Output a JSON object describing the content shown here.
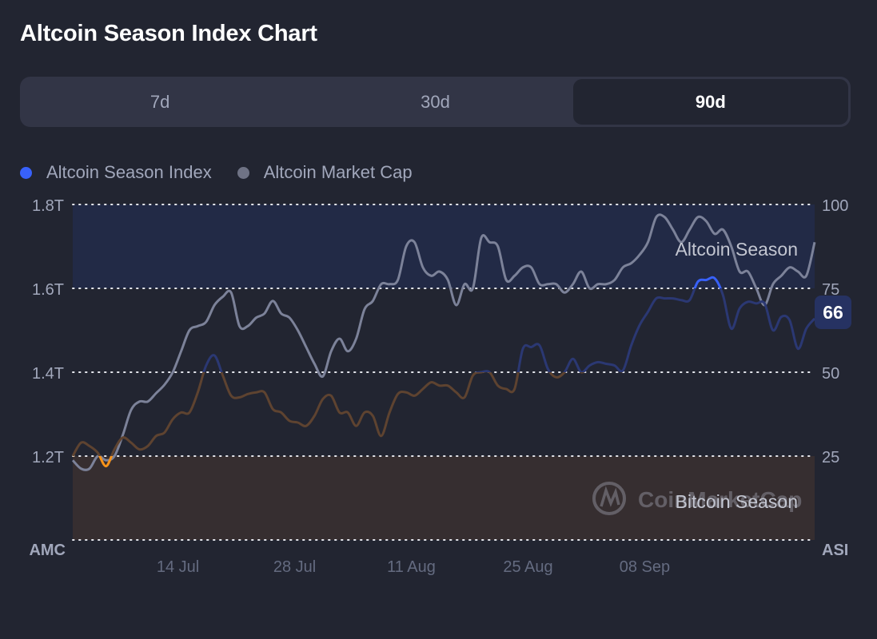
{
  "title": "Altcoin Season Index Chart",
  "tabs": [
    {
      "label": "7d",
      "active": false
    },
    {
      "label": "30d",
      "active": false
    },
    {
      "label": "90d",
      "active": true
    }
  ],
  "legend": [
    {
      "label": "Altcoin Season Index",
      "color": "#3861fb"
    },
    {
      "label": "Altcoin Market Cap",
      "color": "#6f7385"
    }
  ],
  "current_value_badge": "66",
  "watermark": "CoinMarketCap",
  "colors": {
    "background": "#222531",
    "altcoin_season_zone": "#222a46",
    "bitcoin_season_zone": "#362e30",
    "asi_bright_blue": "#3861fb",
    "asi_dim_blue": "#2b3873",
    "asi_dim_orange": "#5e4330",
    "asi_bright_orange": "#f7931a",
    "market_cap_line": "#7c8299"
  },
  "chart_data": {
    "type": "line",
    "title": "",
    "left_axis_label": "AMC",
    "right_axis_label": "ASI",
    "left_ticks": [
      "1.8T",
      "1.6T",
      "1.4T",
      "1.2T"
    ],
    "left_tick_values": [
      1.8,
      1.6,
      1.4,
      1.2
    ],
    "left_ylim": [
      1.0,
      1.8
    ],
    "right_ticks": [
      "100",
      "75",
      "50",
      "25"
    ],
    "right_tick_values": [
      100,
      75,
      50,
      25
    ],
    "right_ylim": [
      0,
      100
    ],
    "x_ticks": [
      "14 Jul",
      "28 Jul",
      "11 Aug",
      "25 Aug",
      "08 Sep"
    ],
    "x_start": "01 Jul",
    "x_end": "28 Sep",
    "zones": [
      {
        "label": "Altcoin Season",
        "from": 75,
        "to": 100
      },
      {
        "label": "Bitcoin Season",
        "from": 0,
        "to": 25
      }
    ],
    "grid": true,
    "legend_position": "top-left",
    "series": [
      {
        "name": "Altcoin Season Index",
        "axis": "right",
        "values": [
          25,
          29,
          28,
          26,
          22,
          27,
          30.5,
          29,
          27,
          28,
          31,
          32,
          36,
          38,
          38,
          44,
          52,
          55,
          49,
          43,
          42.5,
          43.5,
          44,
          44,
          39,
          38,
          35.5,
          35,
          34,
          37,
          42,
          43,
          38,
          38,
          34,
          38,
          37,
          31,
          38,
          43.5,
          44,
          43,
          45,
          47,
          46,
          46,
          44,
          42.5,
          49,
          50,
          50,
          46,
          45,
          45,
          57,
          57.5,
          58,
          51,
          48.5,
          50,
          54,
          50,
          52,
          53,
          52.5,
          52,
          50.5,
          58,
          64,
          68,
          72,
          72,
          72,
          71.5,
          71.5,
          77,
          77.5,
          78,
          73,
          63,
          69,
          71,
          70.5,
          70.5,
          62.5,
          66.5,
          65.5,
          57,
          63,
          66
        ]
      },
      {
        "name": "Altcoin Market Cap",
        "axis": "left",
        "values": [
          1.19,
          1.17,
          1.17,
          1.2,
          1.19,
          1.2,
          1.25,
          1.31,
          1.33,
          1.33,
          1.35,
          1.37,
          1.4,
          1.45,
          1.5,
          1.51,
          1.52,
          1.56,
          1.58,
          1.59,
          1.51,
          1.51,
          1.53,
          1.54,
          1.57,
          1.54,
          1.53,
          1.5,
          1.46,
          1.42,
          1.39,
          1.45,
          1.48,
          1.45,
          1.48,
          1.55,
          1.57,
          1.61,
          1.61,
          1.62,
          1.7,
          1.71,
          1.65,
          1.63,
          1.64,
          1.62,
          1.56,
          1.61,
          1.6,
          1.72,
          1.71,
          1.7,
          1.62,
          1.63,
          1.65,
          1.65,
          1.61,
          1.61,
          1.61,
          1.59,
          1.61,
          1.64,
          1.6,
          1.61,
          1.61,
          1.62,
          1.65,
          1.66,
          1.68,
          1.71,
          1.77,
          1.77,
          1.74,
          1.71,
          1.74,
          1.77,
          1.76,
          1.73,
          1.74,
          1.7,
          1.64,
          1.64,
          1.6,
          1.56,
          1.61,
          1.63,
          1.65,
          1.64,
          1.63,
          1.71
        ]
      }
    ]
  }
}
